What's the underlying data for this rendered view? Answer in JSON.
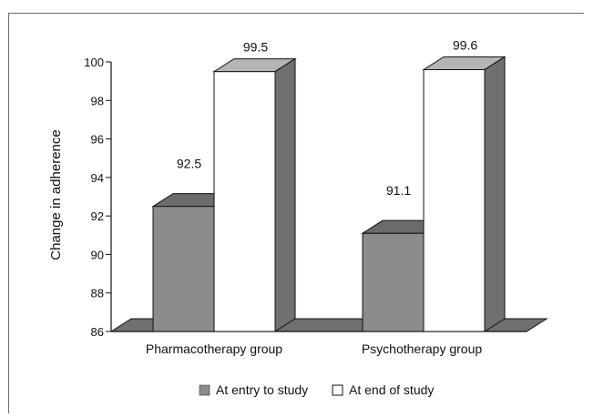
{
  "chart_data": {
    "type": "bar",
    "categories": [
      "Pharmacotherapy group",
      "Psychotherapy group"
    ],
    "series": [
      {
        "name": "At entry to study",
        "values": [
          92.5,
          91.1
        ],
        "color": "#8c8c8c"
      },
      {
        "name": "At end of study",
        "values": [
          99.5,
          99.6
        ],
        "color": "#ffffff"
      }
    ],
    "data_labels": [
      "92.5",
      "99.5",
      "91.1",
      "99.6"
    ],
    "ylabel": "Change in adherence",
    "xlabel": "",
    "ylim": [
      86,
      100
    ],
    "yticks": [
      "86",
      "88",
      "90",
      "92",
      "94",
      "96",
      "98",
      "100"
    ],
    "legend_position": "bottom",
    "style": "3d"
  }
}
